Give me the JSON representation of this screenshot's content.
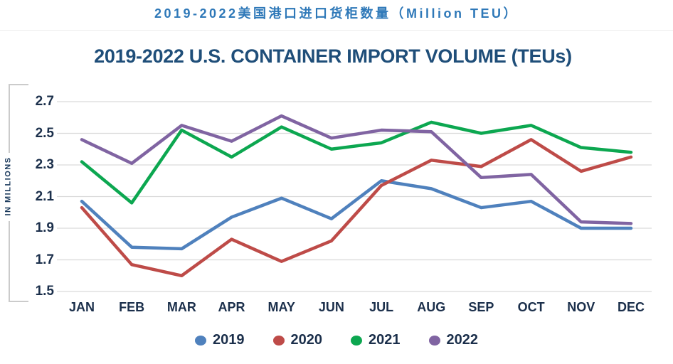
{
  "page": {
    "chinese_title": "2019-2022美国港口进口货柜数量（Million TEU）"
  },
  "chart_data": {
    "type": "line",
    "title": "2019-2022 U.S. CONTAINER IMPORT VOLUME (TEUs)",
    "ylabel": "IN MILLIONS",
    "xlabel": "",
    "categories": [
      "JAN",
      "FEB",
      "MAR",
      "APR",
      "MAY",
      "JUN",
      "JUL",
      "AUG",
      "SEP",
      "OCT",
      "NOV",
      "DEC"
    ],
    "yticks": [
      2.7,
      2.5,
      2.3,
      2.1,
      1.9,
      1.7,
      1.5
    ],
    "ylim": [
      1.5,
      2.7
    ],
    "grid": "horizontal-only",
    "legend_position": "bottom",
    "series": [
      {
        "name": "2019",
        "color": "#4F81BD",
        "values": [
          2.07,
          1.78,
          1.77,
          1.97,
          2.09,
          1.96,
          2.2,
          2.15,
          2.03,
          2.07,
          1.9,
          1.9
        ]
      },
      {
        "name": "2020",
        "color": "#BE4B48",
        "values": [
          2.03,
          1.67,
          1.6,
          1.83,
          1.69,
          1.82,
          2.17,
          2.33,
          2.29,
          2.46,
          2.26,
          2.35
        ]
      },
      {
        "name": "2021",
        "color": "#0CA750",
        "values": [
          2.32,
          2.06,
          2.52,
          2.35,
          2.54,
          2.4,
          2.44,
          2.57,
          2.5,
          2.55,
          2.41,
          2.38
        ]
      },
      {
        "name": "2022",
        "color": "#8064A2",
        "values": [
          2.46,
          2.31,
          2.55,
          2.45,
          2.61,
          2.47,
          2.52,
          2.51,
          2.22,
          2.24,
          1.94,
          1.93
        ]
      }
    ]
  },
  "colors": {
    "chinese_title": "#2E78B8",
    "english_title": "#1F4E79",
    "tick_text": "#1B2F4B",
    "gridline": "#D9D9D9",
    "bracket": "#CBCBCB"
  }
}
